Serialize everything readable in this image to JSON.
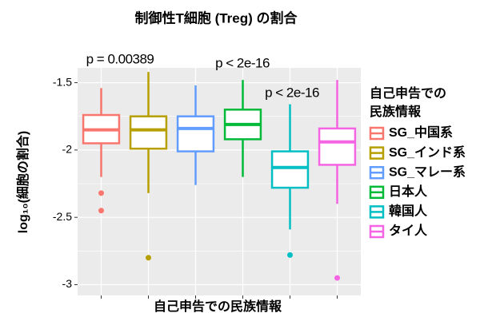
{
  "chart_data": {
    "type": "boxplot",
    "title": "制御性T細胞 (Treg) の割合",
    "x_label": "自己申告での民族情報",
    "y_label": "log₁₀(細胞の割合)",
    "legend_title": [
      "自己申告での",
      "民族情報"
    ],
    "ylim": [
      -3.08,
      -1.39
    ],
    "yticks": [
      -3.0,
      -2.5,
      -2.0,
      -1.5
    ],
    "grid": true,
    "boxes": [
      {
        "name": "SG_中国系",
        "color": "#F8766D",
        "whislo": -2.2,
        "q1": -1.95,
        "med": -1.85,
        "q3": -1.74,
        "whishi": -1.54,
        "fliers": [
          -2.32,
          -2.45
        ]
      },
      {
        "name": "SG_インド系",
        "color": "#B79F00",
        "whislo": -2.32,
        "q1": -1.99,
        "med": -1.85,
        "q3": -1.75,
        "whishi": -1.42,
        "fliers": [
          -2.8
        ]
      },
      {
        "name": "SG_マレー系",
        "color": "#619CFF",
        "whislo": -2.26,
        "q1": -2.01,
        "med": -1.84,
        "q3": -1.75,
        "whishi": -1.52,
        "fliers": []
      },
      {
        "name": "日本人",
        "color": "#00BA38",
        "whislo": -2.2,
        "q1": -1.92,
        "med": -1.81,
        "q3": -1.7,
        "whishi": -1.48,
        "fliers": []
      },
      {
        "name": "韓国人",
        "color": "#00BFC4",
        "whislo": -2.59,
        "q1": -2.28,
        "med": -2.13,
        "q3": -2.01,
        "whishi": -1.66,
        "fliers": [
          -2.78
        ]
      },
      {
        "name": "タイ人",
        "color": "#F564E3",
        "whislo": -2.4,
        "q1": -2.11,
        "med": -1.94,
        "q3": -1.84,
        "whishi": -1.48,
        "fliers": [
          -2.95
        ]
      }
    ],
    "annotations": [
      "p = 0.00389",
      "p < 2e-16",
      "p < 2e-16"
    ]
  }
}
